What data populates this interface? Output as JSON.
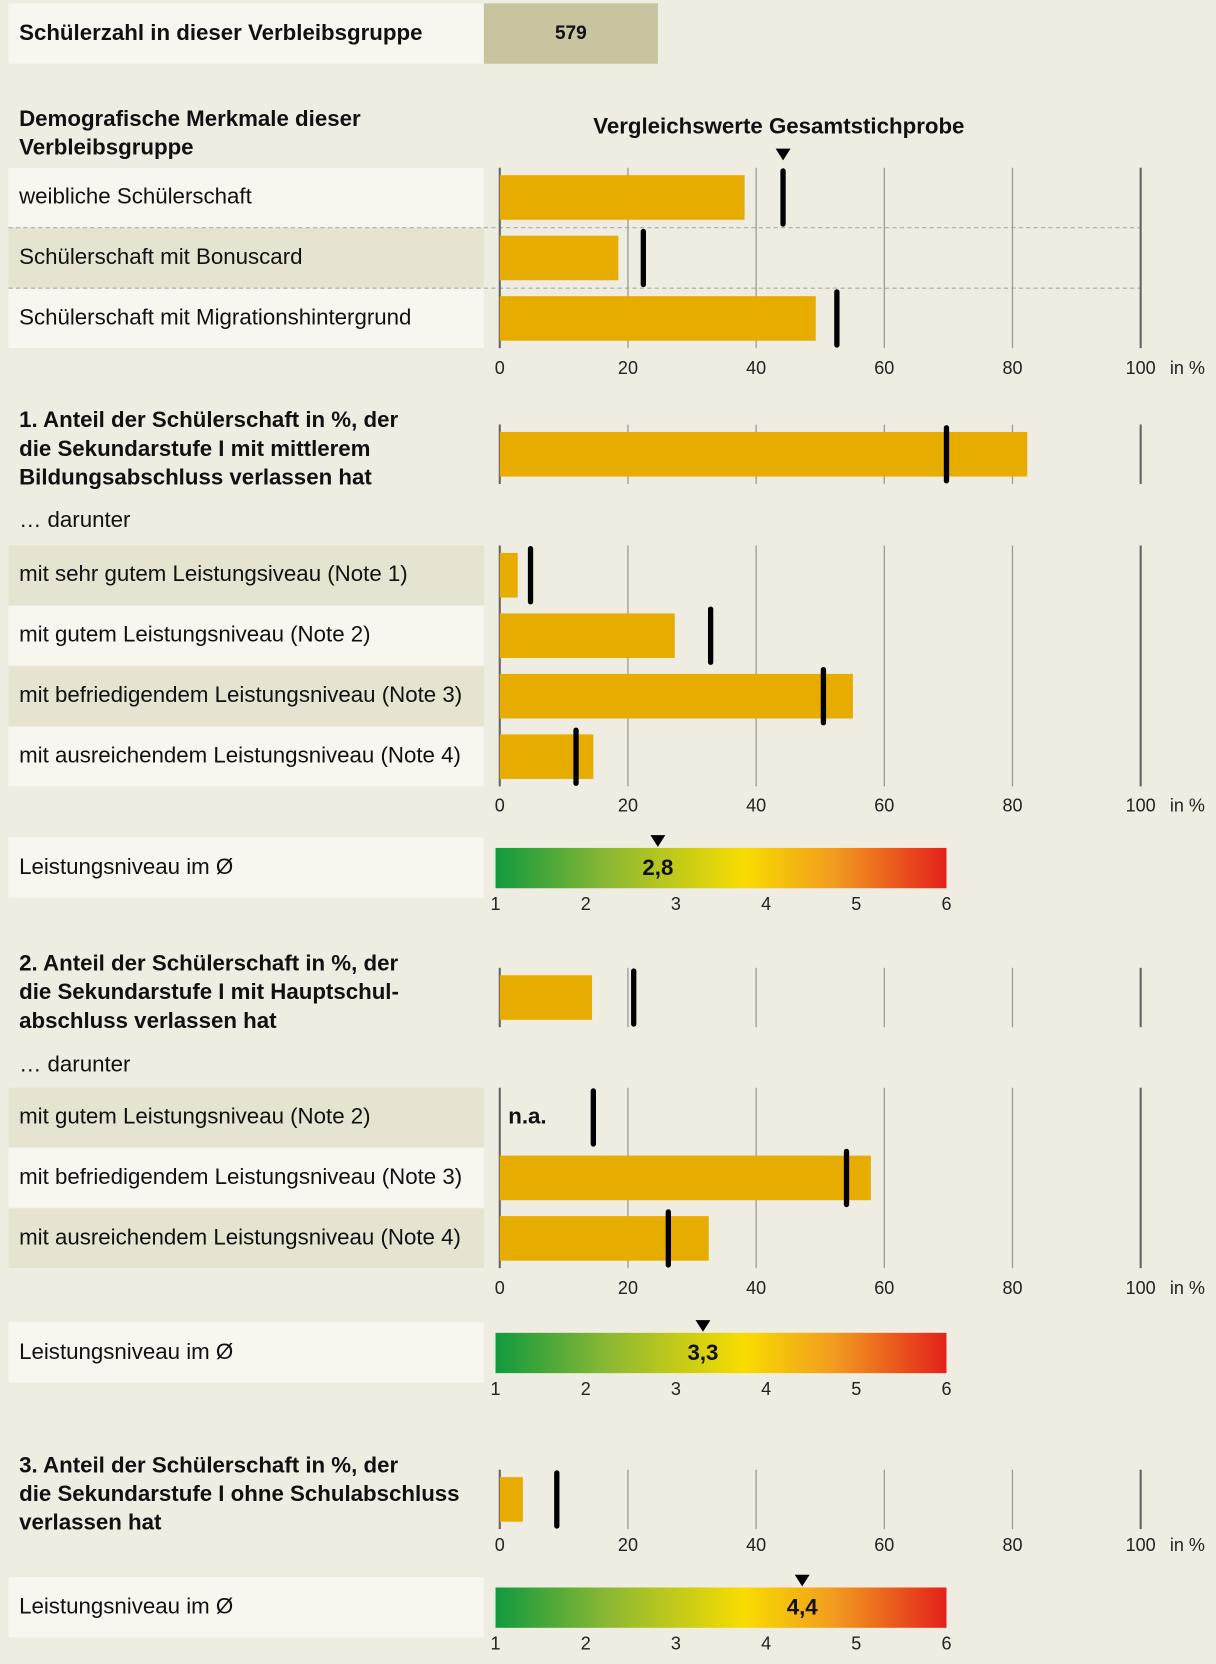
{
  "header": {
    "label": "Schülerzahl in dieser Verbleibsgruppe",
    "value": 579
  },
  "chart_data": [
    {
      "type": "bar",
      "title": [
        "Demografische Merkmale dieser",
        "Verbleibsgruppe"
      ],
      "reference_label": "Vergleichswerte Gesamtstichprobe",
      "categories": [
        "weibliche Schülerschaft",
        "Schülerschaft mit Bonuscard",
        "Schülerschaft mit Migrationshintergrund"
      ],
      "values": [
        38.2,
        18.5,
        49.3
      ],
      "reference_values": [
        44.2,
        22.4,
        52.6
      ],
      "xlim": [
        0,
        100
      ],
      "xticks": [
        0,
        20,
        40,
        60,
        80,
        100
      ],
      "xunit": "in %",
      "color": "#e6ac00",
      "reference_color": "#000000",
      "grid": true
    },
    {
      "type": "bar",
      "title": [
        "1. Anteil der Schülerschaft in %, der",
        "die Sekundarstufe I mit mittlerem",
        "Bildungsabschluss verlassen hat"
      ],
      "lead_value": 82.3,
      "lead_reference": 69.7,
      "subtitle": "… darunter",
      "categories": [
        "mit sehr gutem Leistungsiveau (Note 1)",
        "mit gutem Leistungsniveau (Note 2)",
        "mit befriedigendem Leistungsniveau (Note 3)",
        "mit ausreichendem Leistungsniveau (Note 4)"
      ],
      "values": [
        2.8,
        27.3,
        55.1,
        14.6
      ],
      "reference_values": [
        4.8,
        32.9,
        50.5,
        11.9
      ],
      "xlim": [
        0,
        100
      ],
      "xticks": [
        0,
        20,
        40,
        60,
        80,
        100
      ],
      "xunit": "in %",
      "color": "#e6ac00",
      "reference_color": "#000000",
      "grid": true
    },
    {
      "type": "gauge",
      "label": "Leistungsniveau im Ø",
      "value": 2.8,
      "value_label": "2,8",
      "xlim": [
        1,
        6
      ],
      "xticks": [
        1,
        2,
        3,
        4,
        5,
        6
      ]
    },
    {
      "type": "bar",
      "title": [
        "2. Anteil der Schülerschaft in %, der",
        "die Sekundarstufe I mit Hauptschul-",
        "abschluss verlassen hat"
      ],
      "lead_value": 14.4,
      "lead_reference": 20.9,
      "subtitle": "… darunter",
      "categories": [
        "mit gutem Leistungsniveau (Note 2)",
        "mit befriedigendem Leistungsniveau (Note 3)",
        "mit ausreichendem Leistungsniveau (Note 4)"
      ],
      "values": [
        null,
        57.9,
        32.6
      ],
      "value_labels": [
        "n.a.",
        null,
        null
      ],
      "reference_values": [
        14.6,
        54.1,
        26.3
      ],
      "xlim": [
        0,
        100
      ],
      "xticks": [
        0,
        20,
        40,
        60,
        80,
        100
      ],
      "xunit": "in %",
      "color": "#e6ac00",
      "reference_color": "#000000",
      "grid": true
    },
    {
      "type": "gauge",
      "label": "Leistungsniveau im Ø",
      "value": 3.3,
      "value_label": "3,3",
      "xlim": [
        1,
        6
      ],
      "xticks": [
        1,
        2,
        3,
        4,
        5,
        6
      ]
    },
    {
      "type": "bar",
      "title": [
        "3. Anteil der Schülerschaft in %, der",
        "die Sekundarstufe I ohne Schulabschluss",
        "verlassen hat"
      ],
      "lead_value": 3.6,
      "lead_reference": 8.9,
      "xlim": [
        0,
        100
      ],
      "xticks": [
        0,
        20,
        40,
        60,
        80,
        100
      ],
      "xunit": "in %",
      "color": "#e6ac00",
      "reference_color": "#000000",
      "grid": true
    },
    {
      "type": "gauge",
      "label": "Leistungsniveau im Ø",
      "value": 4.4,
      "value_label": "4,4",
      "xlim": [
        1,
        6
      ],
      "xticks": [
        1,
        2,
        3,
        4,
        5,
        6
      ]
    }
  ]
}
